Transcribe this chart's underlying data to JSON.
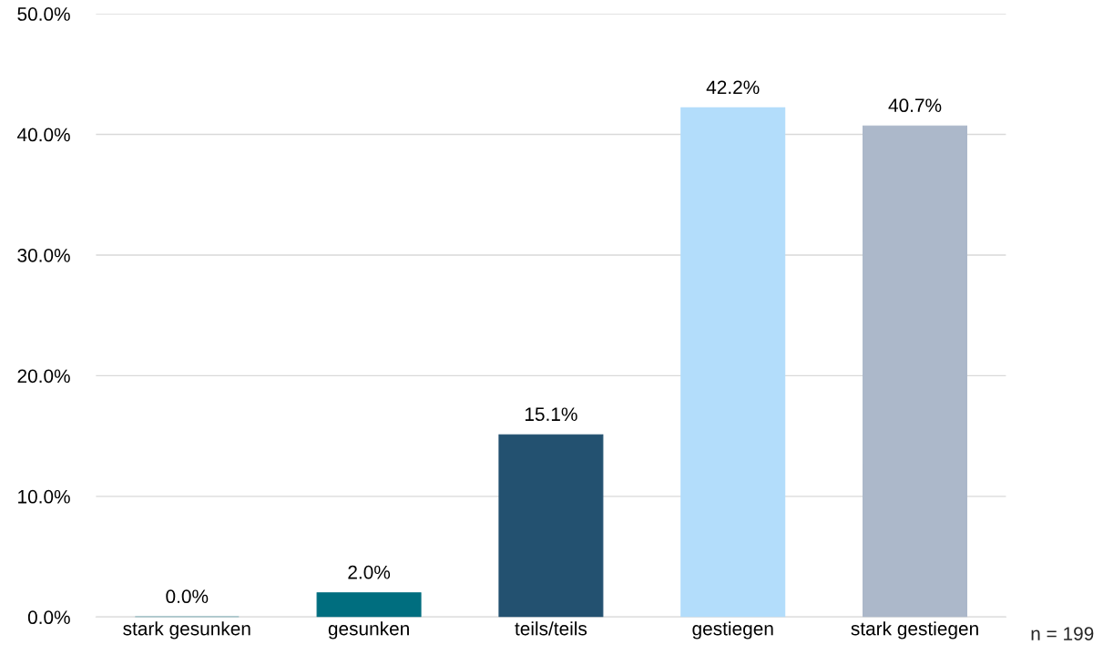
{
  "chart_data": {
    "type": "bar",
    "categories": [
      "stark gesunken",
      "gesunken",
      "teils/teils",
      "gestiegen",
      "stark gestiegen"
    ],
    "values": [
      0.0,
      2.0,
      15.1,
      42.2,
      40.7
    ],
    "colors": [
      "#006e7f",
      "#006e7f",
      "#235170",
      "#b3ddfb",
      "#acb8ca"
    ],
    "value_labels": [
      "0.0%",
      "2.0%",
      "15.1%",
      "42.2%",
      "40.7%"
    ],
    "ylim": [
      0,
      50
    ],
    "yticks": [
      {
        "value": 0,
        "label": "0.0%"
      },
      {
        "value": 10,
        "label": "10.0%"
      },
      {
        "value": 20,
        "label": "20.0%"
      },
      {
        "value": 30,
        "label": "30.0%"
      },
      {
        "value": 40,
        "label": "40.0%"
      },
      {
        "value": 50,
        "label": "50.0%"
      }
    ],
    "grid": "y",
    "annotations": [
      "n = 199"
    ]
  }
}
